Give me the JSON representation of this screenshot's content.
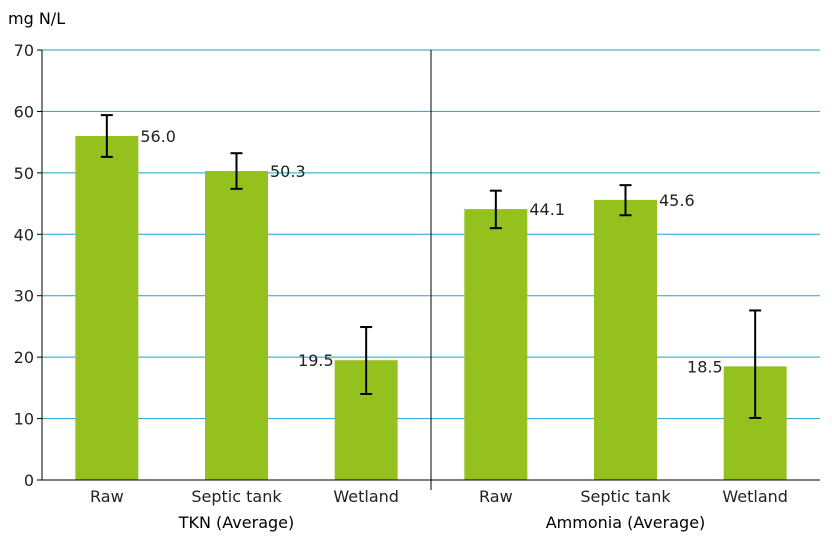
{
  "chart_data": {
    "type": "bar",
    "ylabel": "mg N/L",
    "ylim": [
      0,
      70
    ],
    "yticks": [
      0,
      10,
      20,
      30,
      40,
      50,
      60,
      70
    ],
    "grid": true,
    "bar_color": "#95c11f",
    "grid_color": "#1fa0d2",
    "groups": [
      {
        "label": "TKN (Average)",
        "categories": [
          "Raw",
          "Septic tank",
          "Wetland"
        ],
        "values": [
          56.0,
          50.3,
          19.5
        ],
        "value_labels": [
          "56.0",
          "50.3",
          "19.5"
        ],
        "error_low": [
          52.6,
          47.4,
          14.0
        ],
        "error_high": [
          59.4,
          53.2,
          24.9
        ]
      },
      {
        "label": "Ammonia (Average)",
        "categories": [
          "Raw",
          "Septic tank",
          "Wetland"
        ],
        "values": [
          44.1,
          45.6,
          18.5
        ],
        "value_labels": [
          "44.1",
          "45.6",
          "18.5"
        ],
        "error_low": [
          41.0,
          43.1,
          10.1
        ],
        "error_high": [
          47.1,
          48.0,
          27.6
        ]
      }
    ]
  }
}
